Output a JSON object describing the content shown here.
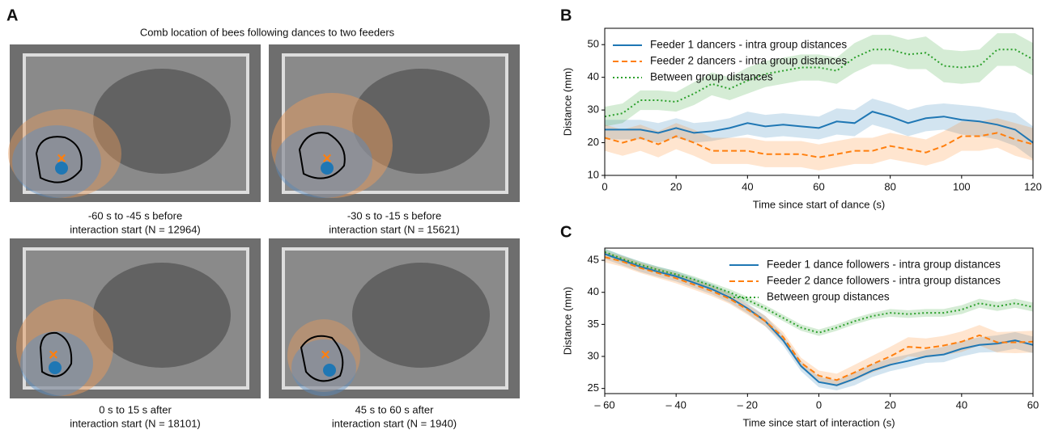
{
  "figure": {
    "panel_labels": [
      "A",
      "B",
      "C"
    ],
    "title": "Comb location of bees following dances to two feeders",
    "captions": [
      [
        "-60 s to -45 s before",
        "interaction start (N = 12964)"
      ],
      [
        "-30 s to -15 s before",
        "interaction start (N = 15621)"
      ],
      [
        "0 s to 15 s after",
        "interaction start (N = 18101)"
      ],
      [
        "45 s to 60 s after",
        "interaction start (N = 1940)"
      ]
    ]
  },
  "chart_data": [
    {
      "type": "line",
      "xlabel": "Time since start of dance (s)",
      "ylabel": "Distance (mm)",
      "x": [
        0,
        5,
        10,
        15,
        20,
        25,
        30,
        35,
        40,
        45,
        50,
        55,
        60,
        65,
        70,
        75,
        80,
        85,
        90,
        95,
        100,
        105,
        110,
        115,
        120
      ],
      "xlim": [
        0,
        120
      ],
      "xticks": [
        0,
        20,
        40,
        60,
        80,
        100,
        120
      ],
      "ylim": [
        10,
        55
      ],
      "yticks": [
        10,
        20,
        30,
        40,
        50
      ],
      "legend": "upper left",
      "series": [
        {
          "name": "Feeder 1 dancers - intra group distances",
          "color": "#1f77b4",
          "style": "solid",
          "values": [
            24,
            24,
            24,
            23,
            24.5,
            23,
            23.5,
            24.5,
            26,
            25,
            25.5,
            25,
            24.5,
            26.5,
            26,
            29.5,
            28,
            26,
            27.5,
            28,
            27,
            26.5,
            25.5,
            24,
            20
          ],
          "errors": [
            3,
            3,
            3,
            3,
            3,
            3,
            3,
            3,
            3.5,
            3.5,
            3.5,
            3.5,
            3.5,
            4,
            4,
            4,
            4,
            4,
            4,
            4,
            4.5,
            4.5,
            4.5,
            5,
            5
          ]
        },
        {
          "name": "Feeder 2 dancers - intra group distances",
          "color": "#ff7f0e",
          "style": "dashed",
          "values": [
            21.5,
            20,
            21.5,
            19.5,
            22,
            20,
            17.5,
            17.5,
            17.5,
            16.5,
            16.5,
            16.5,
            15.5,
            16.5,
            17.5,
            17.5,
            19,
            18,
            17,
            19,
            22,
            22,
            23,
            21,
            19.5
          ],
          "errors": [
            4,
            4,
            4,
            4,
            4,
            4,
            4,
            4,
            4,
            4,
            4,
            4,
            4,
            4,
            4,
            4,
            4,
            4,
            4,
            4.5,
            4.5,
            4.5,
            4.5,
            5,
            5
          ]
        },
        {
          "name": "Between group distances",
          "color": "#2ca02c",
          "style": "dotted",
          "values": [
            28,
            29,
            33,
            33,
            32.5,
            35,
            38,
            36.5,
            39,
            41,
            42,
            43,
            43,
            42,
            46,
            48.5,
            48.5,
            47,
            47.5,
            43.5,
            43,
            43.5,
            48.5,
            48.5,
            45.5
          ],
          "errors": [
            3,
            3,
            3,
            3,
            3,
            3.5,
            3.5,
            3.5,
            4,
            4,
            4,
            4,
            4,
            4,
            4.5,
            4.5,
            4.5,
            4.5,
            5,
            5,
            5,
            5,
            5,
            5,
            5
          ]
        }
      ]
    },
    {
      "type": "line",
      "xlabel": "Time since start of interaction (s)",
      "ylabel": "Distance (mm)",
      "x": [
        -60,
        -55,
        -50,
        -45,
        -40,
        -35,
        -30,
        -25,
        -20,
        -15,
        -10,
        -5,
        0,
        5,
        10,
        15,
        20,
        25,
        30,
        35,
        40,
        45,
        50,
        55,
        60
      ],
      "xlim": [
        -60,
        60
      ],
      "xticks": [
        {
          "value": -60,
          "label": "– 60"
        },
        {
          "value": -40,
          "label": "– 40"
        },
        {
          "value": -20,
          "label": "– 20"
        },
        0,
        20,
        40,
        60
      ],
      "ylim": [
        24.2,
        46.9
      ],
      "yticks": [
        25,
        30,
        35,
        40,
        45
      ],
      "legend": "upper right",
      "series": [
        {
          "name": "Feeder 1 dance followers - intra group distances",
          "color": "#1f77b4",
          "style": "solid",
          "values": [
            46,
            45,
            44,
            43.2,
            42.5,
            41.5,
            40.5,
            39.2,
            37.5,
            35.5,
            32.5,
            28.5,
            26,
            25.5,
            26.5,
            27.8,
            28.7,
            29.3,
            30,
            30.3,
            31.2,
            31.8,
            32,
            32.5,
            31.8
          ],
          "errors": [
            0.8,
            0.8,
            0.8,
            0.8,
            0.8,
            0.8,
            0.8,
            0.8,
            0.8,
            0.8,
            0.8,
            0.8,
            0.8,
            0.8,
            1,
            1,
            1,
            1,
            1,
            1.2,
            1.2,
            1.2,
            1.3,
            1.3,
            1.3
          ]
        },
        {
          "name": "Feeder 2 dance followers - intra group distances",
          "color": "#ff7f0e",
          "style": "dashed",
          "values": [
            45.5,
            44.8,
            43.8,
            43,
            42.2,
            41.2,
            40.2,
            39,
            37.3,
            35.5,
            33,
            29,
            27,
            26.3,
            27.5,
            28.8,
            30,
            31.5,
            31.3,
            31.7,
            32.3,
            33.3,
            32.2,
            32.2,
            32.3
          ],
          "errors": [
            0.8,
            0.8,
            0.8,
            0.8,
            0.8,
            0.8,
            0.8,
            0.8,
            0.8,
            0.8,
            0.8,
            0.8,
            0.8,
            1,
            1.2,
            1.3,
            1.5,
            1.5,
            1.5,
            1.5,
            1.6,
            1.6,
            1.6,
            1.7,
            1.7
          ]
        },
        {
          "name": "Between group distances",
          "color": "#2ca02c",
          "style": "dotted",
          "values": [
            46.3,
            45.2,
            44.3,
            43.5,
            42.8,
            42,
            41,
            40,
            38.8,
            37.5,
            36,
            34.5,
            33.7,
            34.5,
            35.5,
            36.3,
            36.8,
            36.6,
            36.8,
            36.8,
            37.3,
            38.3,
            37.8,
            38.3,
            37.7
          ],
          "errors": [
            0.5,
            0.5,
            0.5,
            0.5,
            0.5,
            0.5,
            0.5,
            0.5,
            0.5,
            0.5,
            0.5,
            0.5,
            0.5,
            0.5,
            0.5,
            0.5,
            0.6,
            0.6,
            0.6,
            0.6,
            0.7,
            0.7,
            0.7,
            0.7,
            0.7
          ]
        }
      ]
    }
  ]
}
